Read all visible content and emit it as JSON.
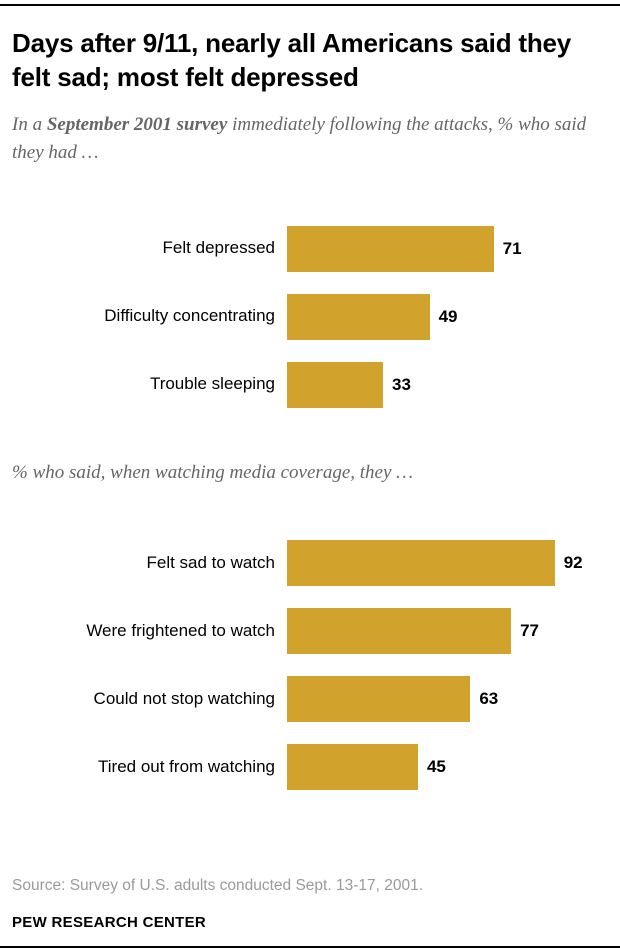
{
  "accent_color": "#d1a32c",
  "header": {
    "title": "Days after 9/11, nearly all Americans said they felt sad; most felt depressed",
    "subtitle": {
      "pre": "In a ",
      "bold": "September 2001 survey",
      "post": " immediately following the attacks, % who said they had …"
    }
  },
  "section2_label": "% who said, when watching media coverage, they …",
  "footer": {
    "source": "Source: Survey of U.S. adults conducted Sept. 13-17, 2001.",
    "brand": "PEW RESEARCH CENTER"
  },
  "chart_data": [
    {
      "type": "bar",
      "orientation": "horizontal",
      "title": "In a September 2001 survey immediately following the attacks, % who said they had …",
      "categories": [
        "Felt depressed",
        "Difficulty concentrating",
        "Trouble sleeping"
      ],
      "values": [
        71,
        49,
        33
      ],
      "xlim": [
        0,
        100
      ],
      "grid": false,
      "legend": "none",
      "bar_color": "#d1a32c",
      "value_labels": "outside-end"
    },
    {
      "type": "bar",
      "orientation": "horizontal",
      "title": "% who said, when watching media coverage, they …",
      "categories": [
        "Felt sad to watch",
        "Were frightened to watch",
        "Could not stop watching",
        "Tired out from watching"
      ],
      "values": [
        92,
        77,
        63,
        45
      ],
      "xlim": [
        0,
        100
      ],
      "grid": false,
      "legend": "none",
      "bar_color": "#d1a32c",
      "value_labels": "outside-end"
    }
  ]
}
